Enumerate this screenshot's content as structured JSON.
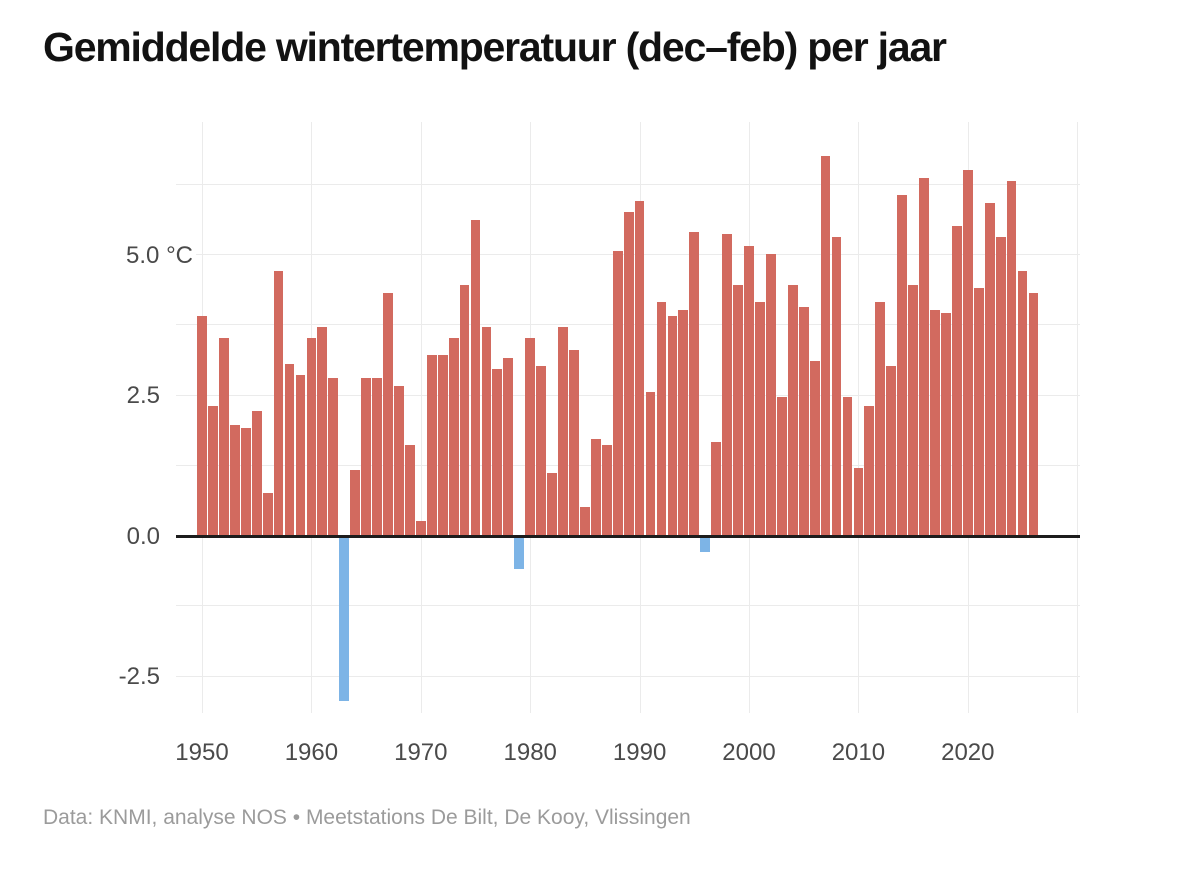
{
  "title": "Gemiddelde wintertemperatuur (dec–feb) per jaar",
  "footer": "Data: KNMI, analyse NOS  •  Meetstations De Bilt, De Kooy, Vlissingen",
  "chart_data": {
    "type": "bar",
    "title": "Gemiddelde wintertemperatuur (dec–feb) per jaar",
    "source": "Data: KNMI, analyse NOS  •  Meetstations De Bilt, De Kooy, Vlissingen",
    "unit": "°C",
    "xlabel": "",
    "ylabel": "°C",
    "ylim": [
      -3.2,
      7.0
    ],
    "grid": true,
    "positive_color": "#d26a5f",
    "negative_color": "#7db4e6",
    "axis_color": "#1c1c1c",
    "y_ticks": [
      {
        "value": 5.0,
        "label": "5.0 °C",
        "wide": true
      },
      {
        "value": 2.5,
        "label": "2.5",
        "wide": false
      },
      {
        "value": 0.0,
        "label": "0.0",
        "wide": false
      },
      {
        "value": -2.5,
        "label": "-2.5",
        "wide": false
      }
    ],
    "y_gridlines": [
      6.25,
      5.0,
      3.75,
      2.5,
      1.25,
      -1.25,
      -2.5
    ],
    "x_ticks": [
      1950,
      1960,
      1970,
      1980,
      1990,
      2000,
      2010,
      2020
    ],
    "x_gridline_years": [
      1950,
      1960,
      1970,
      1980,
      1990,
      2000,
      2010,
      2020,
      2030
    ],
    "categories": [
      1950,
      1951,
      1952,
      1953,
      1954,
      1955,
      1956,
      1957,
      1958,
      1959,
      1960,
      1961,
      1962,
      1963,
      1964,
      1965,
      1966,
      1967,
      1968,
      1969,
      1970,
      1971,
      1972,
      1973,
      1974,
      1975,
      1976,
      1977,
      1978,
      1979,
      1980,
      1981,
      1982,
      1983,
      1984,
      1985,
      1986,
      1987,
      1988,
      1989,
      1990,
      1991,
      1992,
      1993,
      1994,
      1995,
      1996,
      1997,
      1998,
      1999,
      2000,
      2001,
      2002,
      2003,
      2004,
      2005,
      2006,
      2007,
      2008,
      2009,
      2010,
      2011,
      2012,
      2013,
      2014,
      2015,
      2016,
      2017,
      2018,
      2019,
      2020,
      2021,
      2022,
      2023,
      2024,
      2025,
      2026
    ],
    "values": [
      3.9,
      2.3,
      3.5,
      1.95,
      1.9,
      2.2,
      0.75,
      4.7,
      3.05,
      2.85,
      3.5,
      3.7,
      2.8,
      -2.95,
      1.15,
      2.8,
      2.8,
      4.3,
      2.65,
      1.6,
      0.25,
      3.2,
      3.2,
      3.5,
      4.45,
      5.6,
      3.7,
      2.95,
      3.15,
      -0.6,
      3.5,
      3.0,
      1.1,
      3.7,
      3.3,
      0.5,
      1.7,
      1.6,
      5.05,
      5.75,
      5.95,
      2.55,
      4.15,
      3.9,
      4.0,
      5.4,
      -0.3,
      1.65,
      5.35,
      4.45,
      5.15,
      4.15,
      5.0,
      2.45,
      4.45,
      4.05,
      3.1,
      6.75,
      5.3,
      2.45,
      1.2,
      2.3,
      4.15,
      3.0,
      6.05,
      4.45,
      6.35,
      4.0,
      3.95,
      5.5,
      6.5,
      4.4,
      5.9,
      5.3,
      6.3,
      4.7,
      4.3
    ]
  }
}
